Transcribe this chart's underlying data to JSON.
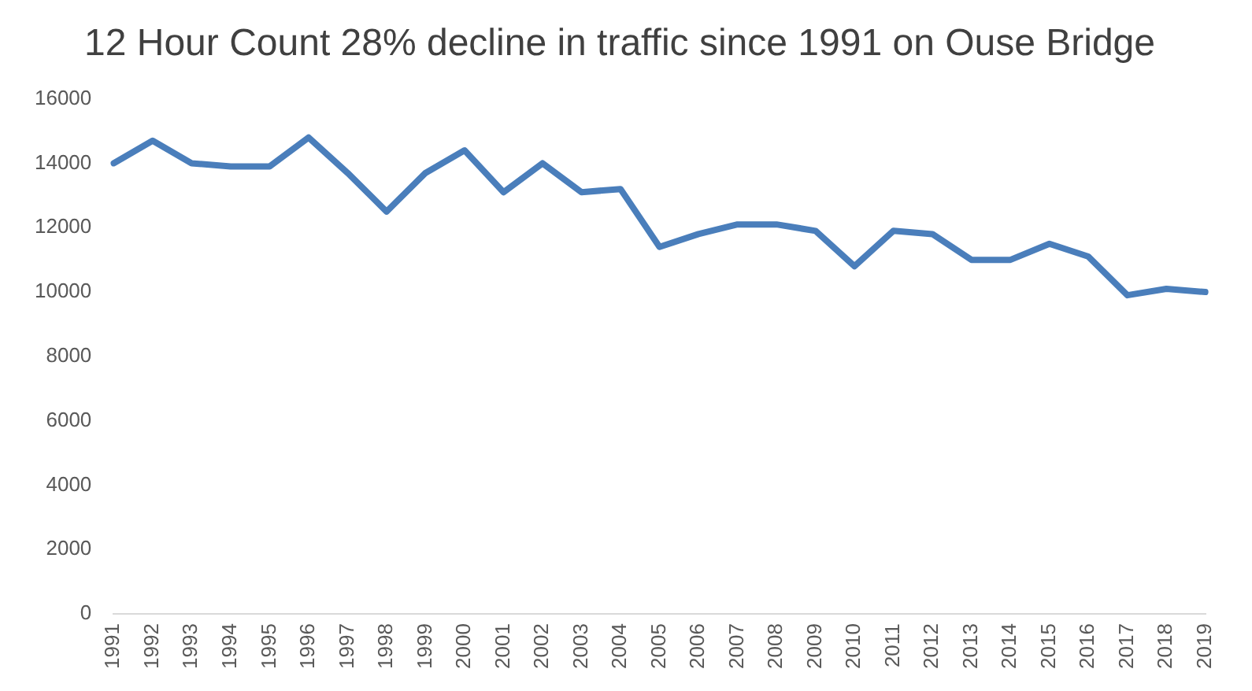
{
  "chart_data": {
    "type": "line",
    "title": "12 Hour Count 28% decline in traffic since 1991 on Ouse Bridge",
    "categories": [
      "1991",
      "1992",
      "1993",
      "1994",
      "1995",
      "1996",
      "1997",
      "1998",
      "1999",
      "2000",
      "2001",
      "2002",
      "2003",
      "2004",
      "2005",
      "2006",
      "2007",
      "2008",
      "2009",
      "2010",
      "2011",
      "2012",
      "2013",
      "2014",
      "2015",
      "2016",
      "2017",
      "2018",
      "2019"
    ],
    "series": [
      {
        "color": "#4a7ebb",
        "values": [
          14000,
          14700,
          14000,
          13900,
          13900,
          14800,
          13700,
          12500,
          13700,
          14400,
          13100,
          14000,
          13100,
          13200,
          11400,
          11800,
          12100,
          12100,
          11900,
          10800,
          11900,
          11800,
          11000,
          11000,
          11500,
          11100,
          9900,
          10100,
          10000
        ]
      }
    ],
    "ylim": [
      0,
      16000
    ],
    "yticks": [
      0,
      2000,
      4000,
      6000,
      8000,
      10000,
      12000,
      14000,
      16000
    ],
    "grid": false,
    "legend": false,
    "marker": "none",
    "line_style": "solid"
  }
}
